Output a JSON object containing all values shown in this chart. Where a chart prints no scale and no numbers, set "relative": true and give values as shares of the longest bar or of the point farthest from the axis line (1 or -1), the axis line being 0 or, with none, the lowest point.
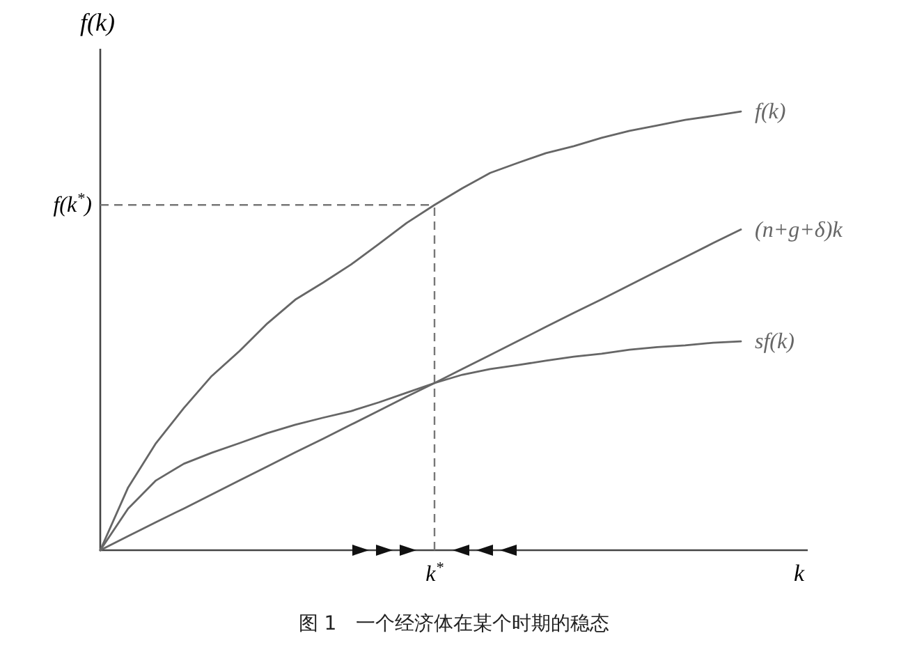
{
  "chart_data": {
    "type": "line",
    "relative": true,
    "xlabel": "k",
    "ylabel": "f(k)",
    "legend": false,
    "marker": "none",
    "line_style": "solid",
    "categories": [
      null,
      null,
      null,
      null,
      null,
      null,
      null,
      null,
      null,
      null,
      null,
      null,
      null,
      null,
      null,
      null,
      null,
      null,
      null,
      null,
      null,
      null,
      null,
      null
    ],
    "series": [
      {
        "name": "f(k)",
        "color": "#666666",
        "values": [
          0,
          0.143,
          0.244,
          0.324,
          0.397,
          0.454,
          0.517,
          0.571,
          0.61,
          0.651,
          0.698,
          0.746,
          0.787,
          0.825,
          0.86,
          0.883,
          0.905,
          0.921,
          0.94,
          0.956,
          0.968,
          0.981,
          0.99,
          1.0
        ]
      },
      {
        "name": "(n+g+δ)k",
        "color": "#666666",
        "values": [
          0,
          0.032,
          0.064,
          0.095,
          0.127,
          0.159,
          0.191,
          0.223,
          0.254,
          0.286,
          0.318,
          0.35,
          0.381,
          0.413,
          0.445,
          0.477,
          0.509,
          0.541,
          0.572,
          0.604,
          0.636,
          0.668,
          0.7,
          0.731
        ]
      },
      {
        "name": "sf(k)",
        "color": "#666666",
        "values": [
          0,
          0.095,
          0.159,
          0.197,
          0.222,
          0.244,
          0.267,
          0.286,
          0.302,
          0.317,
          0.337,
          0.359,
          0.381,
          0.4,
          0.413,
          0.422,
          0.432,
          0.441,
          0.448,
          0.457,
          0.463,
          0.467,
          0.473,
          0.476
        ]
      }
    ],
    "ref_lines": [
      {
        "axis": "x",
        "label": "k$^{*}$",
        "line_style": "dashed",
        "color": "#777777"
      },
      {
        "axis": "y",
        "value": 0.787,
        "label": "f(k$^{*}$)",
        "line_style": "dashed",
        "color": "#777777"
      }
    ],
    "annotations": [
      "图 1　一个经济体在某个时期的稳态"
    ]
  }
}
